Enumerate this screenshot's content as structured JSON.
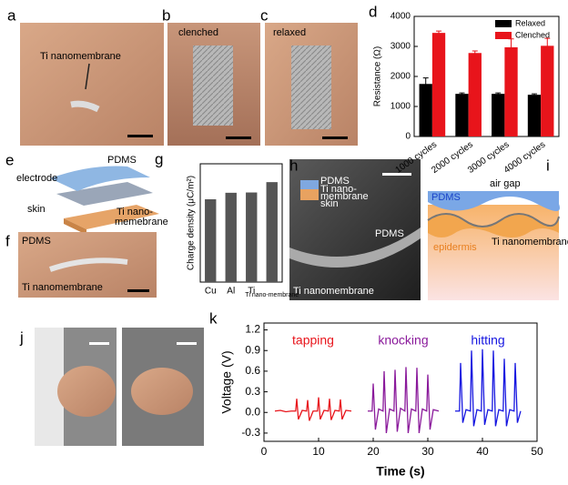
{
  "panels": {
    "a": {
      "label": "a",
      "texts": [
        "Ti nanomembrane"
      ]
    },
    "b": {
      "label": "b",
      "texts": [
        "clenched"
      ]
    },
    "c": {
      "label": "c",
      "texts": [
        "relaxed"
      ]
    },
    "e": {
      "label": "e",
      "texts": [
        "PDMS",
        "electrode",
        "skin",
        "Ti nano-",
        "memebrane"
      ]
    },
    "f": {
      "label": "f",
      "texts": [
        "PDMS",
        "Ti nanomembrane"
      ]
    },
    "h": {
      "label": "h",
      "texts": [
        "PDMS",
        "Ti nano-",
        "membrane",
        "skin",
        "PDMS",
        "Ti nanomembrane"
      ]
    },
    "i": {
      "label": "i",
      "texts": [
        "PDMS",
        "air gap",
        "Ti nanomembrane",
        "epidermis"
      ]
    },
    "j": {
      "label": "j"
    }
  },
  "chart_data": [
    {
      "type": "bar",
      "label": "d",
      "ylabel": "Resistance (Ω)",
      "categories": [
        "1000 cycles",
        "2000 cycles",
        "3000 cycles",
        "4000 cycles"
      ],
      "series": [
        {
          "name": "Relaxed",
          "color": "#000000",
          "values": [
            1750,
            1420,
            1420,
            1390
          ],
          "errors": [
            200,
            30,
            30,
            30
          ]
        },
        {
          "name": "Clenched",
          "color": "#e8141b",
          "values": [
            3450,
            2780,
            2970,
            3020
          ],
          "errors": [
            60,
            70,
            280,
            250
          ]
        }
      ],
      "ylim": [
        0,
        4000
      ],
      "yticks": [
        0,
        1000,
        2000,
        3000,
        4000
      ],
      "legend": "upper right"
    },
    {
      "type": "bar",
      "label": "g",
      "ylabel": "Charge density (μC/m²)",
      "categories": [
        "Cu",
        "Al",
        "Ti",
        "Ti nano-membrane"
      ],
      "series": [
        {
          "color": "#555555",
          "values": [
            28,
            30.2,
            30.3,
            33.8
          ]
        }
      ],
      "ylim": [
        0,
        40
      ]
    },
    {
      "type": "line",
      "label": "k",
      "xlabel": "Time (s)",
      "ylabel": "Voltage (V)",
      "xlim": [
        0,
        50
      ],
      "xticks": [
        0,
        10,
        20,
        30,
        40,
        50
      ],
      "ylim": [
        -0.42,
        1.3
      ],
      "yticks": [
        -0.3,
        {
          "value": 0,
          "label": "0.0"
        },
        0.3,
        0.6,
        0.9,
        1.2
      ],
      "series": [
        {
          "name": "tapping",
          "color": "#e8141b",
          "x": [
            2,
            3,
            4,
            5,
            5.8,
            6,
            6.3,
            7,
            7.8,
            8,
            8.3,
            9,
            9.8,
            10,
            10.3,
            11,
            11.8,
            12,
            12.3,
            13,
            13.8,
            14,
            14.3,
            15,
            16
          ],
          "values": [
            0.02,
            0.03,
            0.01,
            0.02,
            0.02,
            0.2,
            -0.1,
            0.03,
            0.02,
            0.18,
            -0.12,
            0.02,
            0.02,
            0.22,
            -0.1,
            0.03,
            0.02,
            0.2,
            -0.11,
            0.03,
            0.02,
            0.19,
            -0.1,
            0.03,
            0.02
          ]
        },
        {
          "name": "knocking",
          "color": "#8a1a9b",
          "x": [
            19,
            19.8,
            20,
            20.4,
            21,
            21.8,
            22,
            22.4,
            23,
            23.8,
            24,
            24.4,
            25,
            25.8,
            26,
            26.4,
            27,
            27.8,
            28,
            28.4,
            29,
            29.8,
            30,
            30.4,
            31,
            32
          ],
          "values": [
            0.02,
            0.02,
            0.42,
            -0.25,
            0.05,
            0.02,
            0.6,
            -0.3,
            0.05,
            0.02,
            0.62,
            -0.28,
            0.06,
            0.02,
            0.66,
            -0.3,
            0.05,
            0.02,
            0.65,
            -0.3,
            0.05,
            0.02,
            0.55,
            -0.25,
            0.04,
            0.02
          ]
        },
        {
          "name": "hitting",
          "color": "#1515e0",
          "x": [
            35,
            35.8,
            36,
            36.4,
            37,
            37.8,
            38,
            38.4,
            39,
            39.8,
            40,
            40.4,
            41,
            41.8,
            42,
            42.4,
            43,
            43.8,
            44,
            44.4,
            45,
            45.8,
            46,
            46.4,
            47
          ],
          "values": [
            0.02,
            0.02,
            0.72,
            -0.15,
            0.04,
            0.02,
            0.9,
            -0.2,
            0.04,
            0.02,
            0.92,
            -0.18,
            0.04,
            0.02,
            0.9,
            -0.2,
            0.04,
            0.02,
            0.78,
            -0.2,
            0.04,
            0.02,
            0.72,
            -0.15,
            0.02
          ]
        }
      ]
    }
  ]
}
